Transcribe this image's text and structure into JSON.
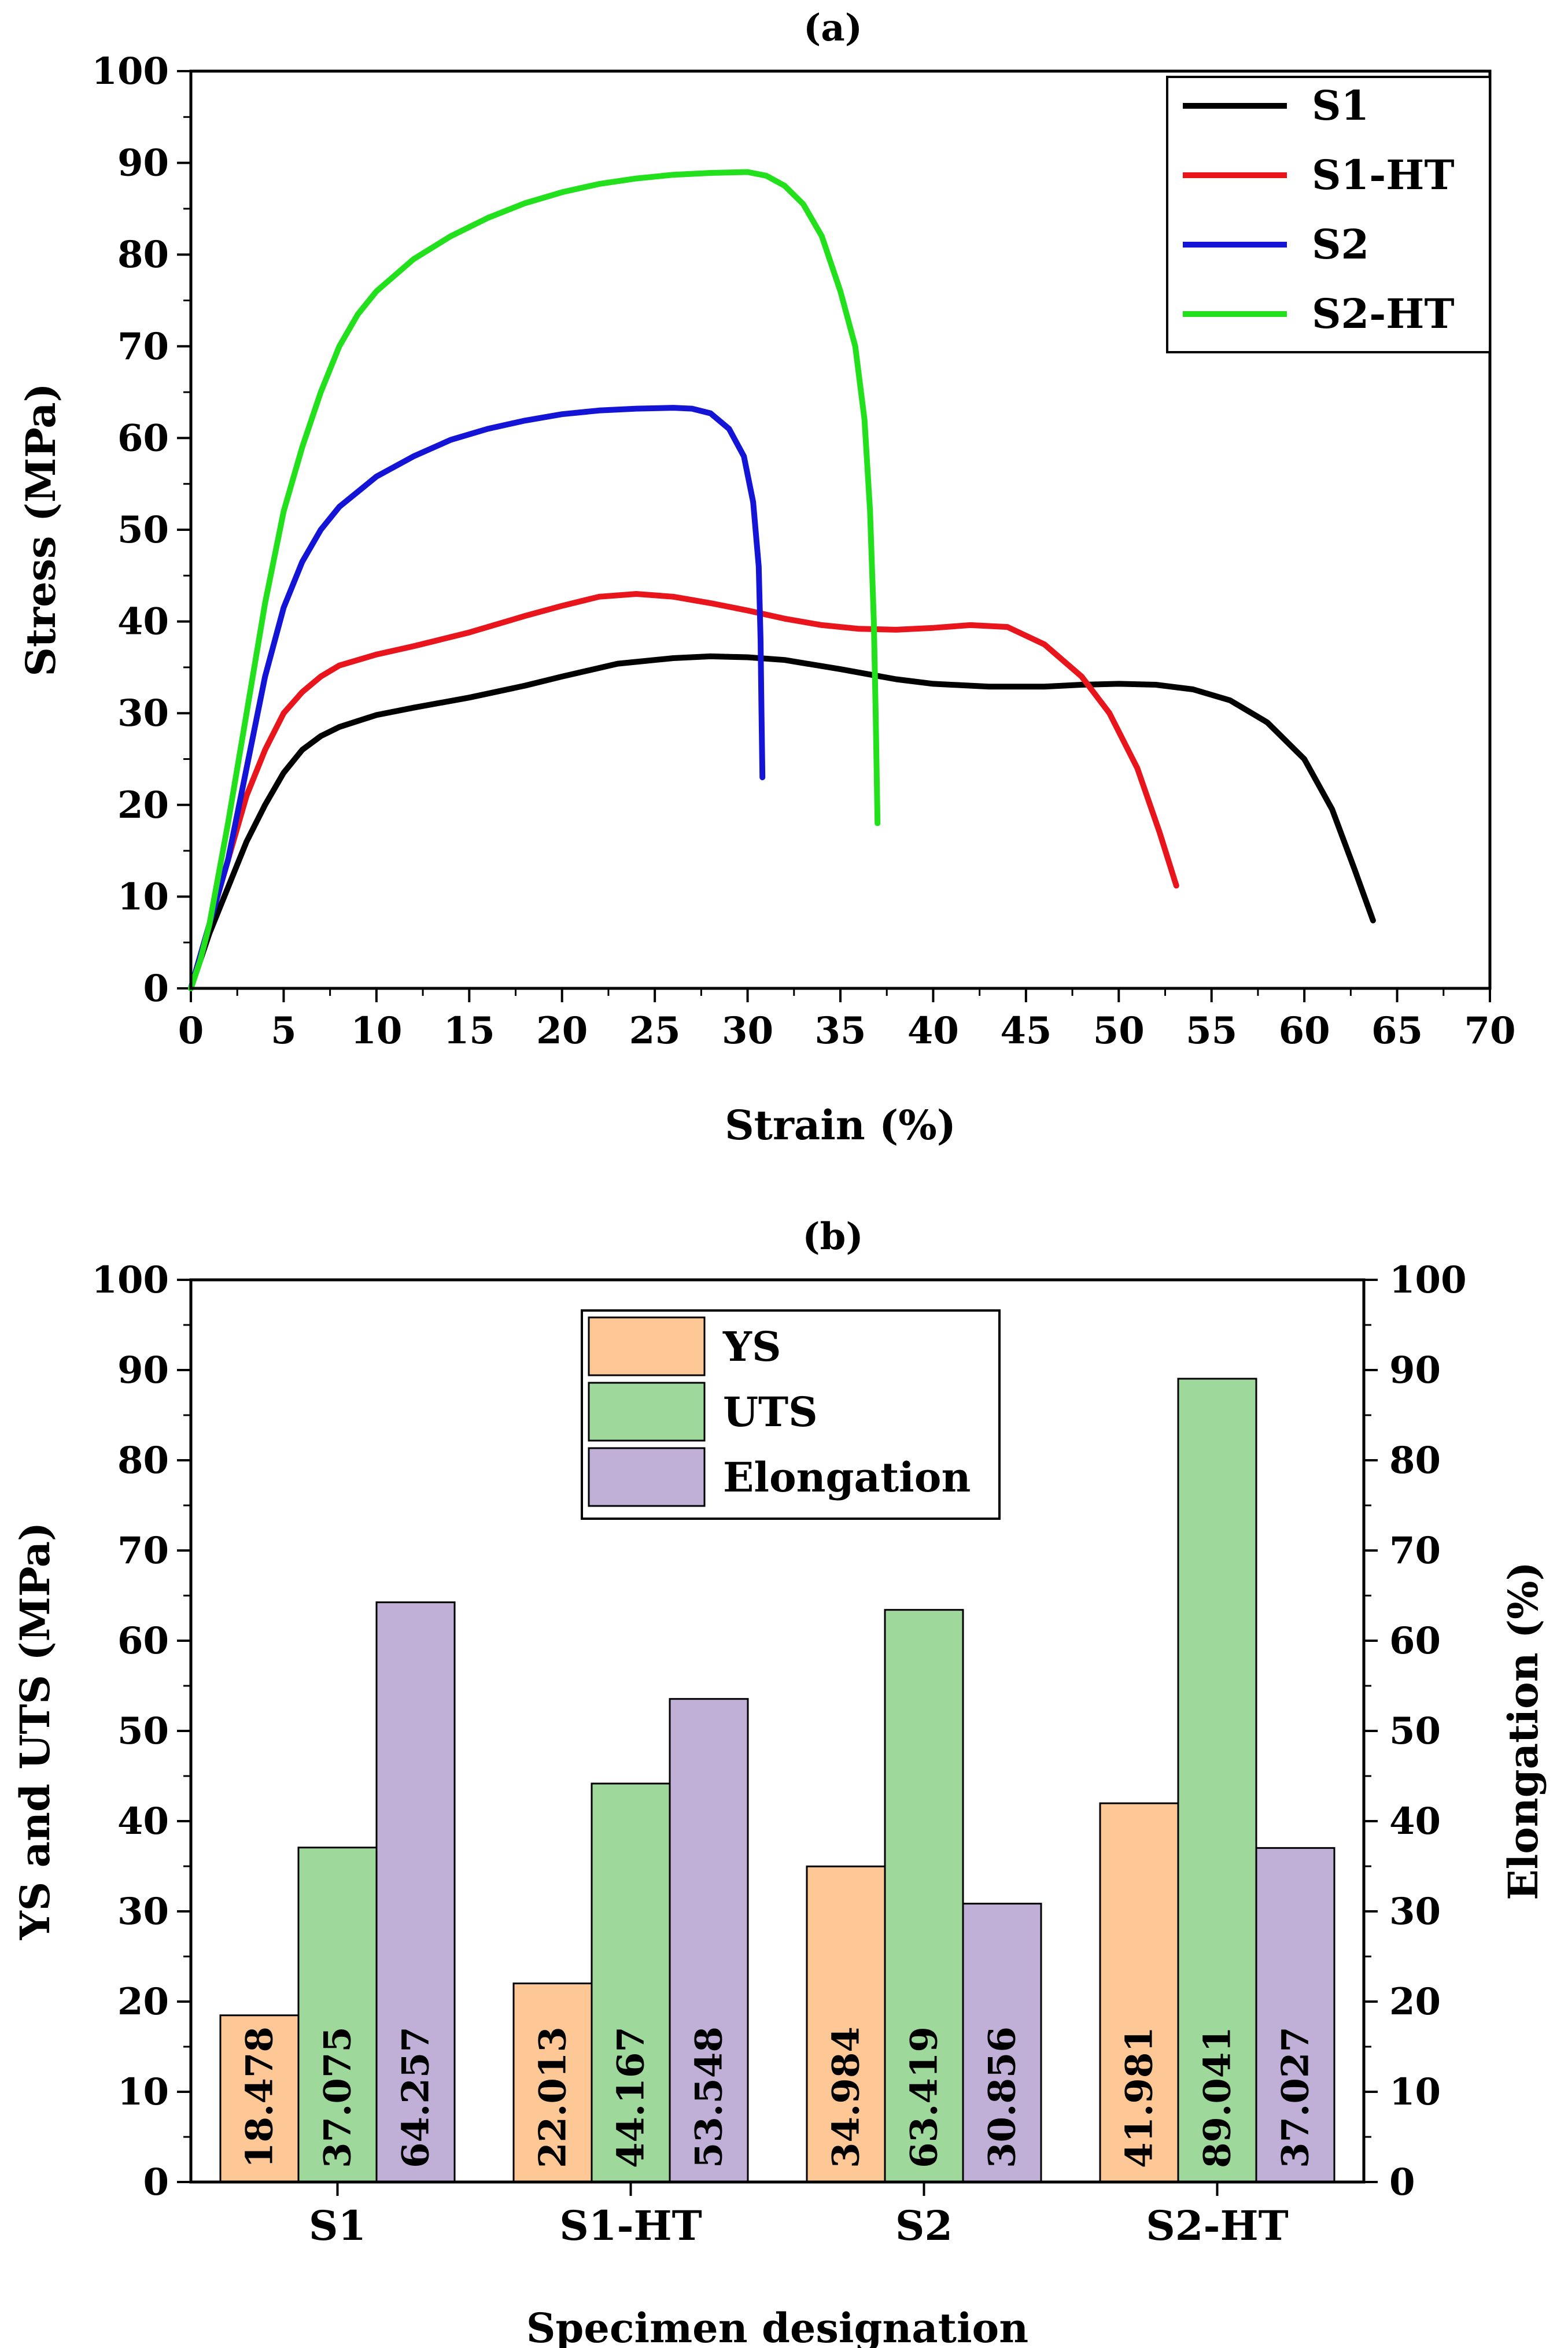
{
  "chart_data": [
    {
      "type": "line",
      "title": "(a)",
      "xlabel": "Strain (%)",
      "ylabel": "Stress (MPa)",
      "xlim": [
        0,
        70
      ],
      "ylim": [
        0,
        100
      ],
      "xticks": [
        "0",
        "5",
        "10",
        "15",
        "20",
        "25",
        "30",
        "35",
        "40",
        "45",
        "50",
        "55",
        "60",
        "65",
        "70"
      ],
      "yticks": [
        "0",
        "10",
        "20",
        "30",
        "40",
        "50",
        "60",
        "70",
        "80",
        "90",
        "100"
      ],
      "grid": false,
      "legend_position": "top-right",
      "series": [
        {
          "name": "S1",
          "color": "#000000",
          "points": [
            [
              0,
              0
            ],
            [
              0.5,
              3
            ],
            [
              1,
              6
            ],
            [
              2,
              11
            ],
            [
              3,
              16
            ],
            [
              4,
              20
            ],
            [
              5,
              23.5
            ],
            [
              6,
              26
            ],
            [
              7,
              27.5
            ],
            [
              8,
              28.5
            ],
            [
              10,
              29.8
            ],
            [
              12,
              30.6
            ],
            [
              15,
              31.7
            ],
            [
              18,
              33
            ],
            [
              20,
              34
            ],
            [
              23,
              35.4
            ],
            [
              26,
              36
            ],
            [
              28,
              36.2
            ],
            [
              30,
              36.1
            ],
            [
              32,
              35.8
            ],
            [
              35,
              34.8
            ],
            [
              38,
              33.7
            ],
            [
              40,
              33.2
            ],
            [
              43,
              32.9
            ],
            [
              46,
              32.9
            ],
            [
              48,
              33.1
            ],
            [
              50,
              33.2
            ],
            [
              52,
              33.1
            ],
            [
              54,
              32.6
            ],
            [
              56,
              31.4
            ],
            [
              58,
              29
            ],
            [
              60,
              25
            ],
            [
              61.5,
              19.5
            ],
            [
              62.7,
              13
            ],
            [
              63.7,
              7.4
            ]
          ]
        },
        {
          "name": "S1-HT",
          "color": "#e8161c",
          "points": [
            [
              0,
              0
            ],
            [
              0.5,
              3.5
            ],
            [
              1,
              7
            ],
            [
              2,
              14
            ],
            [
              3,
              21
            ],
            [
              4,
              26
            ],
            [
              5,
              30
            ],
            [
              6,
              32.3
            ],
            [
              7,
              34
            ],
            [
              8,
              35.2
            ],
            [
              10,
              36.4
            ],
            [
              12,
              37.3
            ],
            [
              15,
              38.8
            ],
            [
              18,
              40.6
            ],
            [
              20,
              41.7
            ],
            [
              22,
              42.7
            ],
            [
              24,
              43
            ],
            [
              26,
              42.7
            ],
            [
              28,
              42
            ],
            [
              30,
              41.2
            ],
            [
              32,
              40.3
            ],
            [
              34,
              39.6
            ],
            [
              36,
              39.2
            ],
            [
              38,
              39.1
            ],
            [
              40,
              39.3
            ],
            [
              42,
              39.6
            ],
            [
              44,
              39.4
            ],
            [
              46,
              37.5
            ],
            [
              48,
              34
            ],
            [
              49.5,
              30
            ],
            [
              51,
              24
            ],
            [
              52.2,
              17
            ],
            [
              53.1,
              11.2
            ]
          ]
        },
        {
          "name": "S2",
          "color": "#1414d6",
          "points": [
            [
              0,
              0
            ],
            [
              0.5,
              3.5
            ],
            [
              1,
              7
            ],
            [
              2,
              14
            ],
            [
              3,
              24
            ],
            [
              4,
              34
            ],
            [
              5,
              41.5
            ],
            [
              6,
              46.5
            ],
            [
              7,
              50
            ],
            [
              8,
              52.5
            ],
            [
              10,
              55.8
            ],
            [
              12,
              58
            ],
            [
              14,
              59.8
            ],
            [
              16,
              61
            ],
            [
              18,
              61.9
            ],
            [
              20,
              62.6
            ],
            [
              22,
              63
            ],
            [
              24,
              63.2
            ],
            [
              26,
              63.3
            ],
            [
              27,
              63.2
            ],
            [
              28,
              62.7
            ],
            [
              29,
              61
            ],
            [
              29.8,
              58
            ],
            [
              30.3,
              53
            ],
            [
              30.6,
              46
            ],
            [
              30.7,
              38
            ],
            [
              30.75,
              30
            ],
            [
              30.8,
              23
            ]
          ]
        },
        {
          "name": "S2-HT",
          "color": "#22e01c",
          "points": [
            [
              0,
              0
            ],
            [
              0.5,
              3
            ],
            [
              1,
              7
            ],
            [
              2,
              18
            ],
            [
              3,
              30
            ],
            [
              4,
              42
            ],
            [
              5,
              52
            ],
            [
              6,
              59
            ],
            [
              7,
              65
            ],
            [
              8,
              70
            ],
            [
              9,
              73.5
            ],
            [
              10,
              76
            ],
            [
              12,
              79.5
            ],
            [
              14,
              82
            ],
            [
              16,
              84
            ],
            [
              18,
              85.6
            ],
            [
              20,
              86.8
            ],
            [
              22,
              87.7
            ],
            [
              24,
              88.3
            ],
            [
              26,
              88.7
            ],
            [
              28,
              88.9
            ],
            [
              30,
              89
            ],
            [
              31,
              88.6
            ],
            [
              32,
              87.5
            ],
            [
              33,
              85.5
            ],
            [
              34,
              82
            ],
            [
              35,
              76
            ],
            [
              35.8,
              70
            ],
            [
              36.3,
              62
            ],
            [
              36.6,
              52
            ],
            [
              36.8,
              40
            ],
            [
              36.9,
              30
            ],
            [
              37,
              18
            ]
          ]
        }
      ]
    },
    {
      "type": "bar",
      "title": "(b)",
      "xlabel": "Specimen designation",
      "ylabel": "YS and UTS (MPa)",
      "ylabel_right": "Elongation (%)",
      "ylim": [
        0,
        100
      ],
      "ylim_right": [
        0,
        100
      ],
      "yticks": [
        "0",
        "10",
        "20",
        "30",
        "40",
        "50",
        "60",
        "70",
        "80",
        "90",
        "100"
      ],
      "categories": [
        "S1",
        "S1-HT",
        "S2",
        "S2-HT"
      ],
      "legend_position": "top-center",
      "series": [
        {
          "name": "YS",
          "color": "#fdc895",
          "axis": "left",
          "values": [
            18.478,
            22.013,
            34.984,
            41.981
          ],
          "labels": [
            "18.478",
            "22.013",
            "34.984",
            "41.981"
          ]
        },
        {
          "name": "UTS",
          "color": "#9ed99b",
          "axis": "left",
          "values": [
            37.075,
            44.167,
            63.419,
            89.041
          ],
          "labels": [
            "37.075",
            "44.167",
            "63.419",
            "89.041"
          ]
        },
        {
          "name": "Elongation",
          "color": "#c0b0d8",
          "axis": "right",
          "values": [
            64.257,
            53.548,
            30.856,
            37.027
          ],
          "labels": [
            "64.257",
            "53.548",
            "30.856",
            "37.027"
          ]
        }
      ]
    }
  ]
}
